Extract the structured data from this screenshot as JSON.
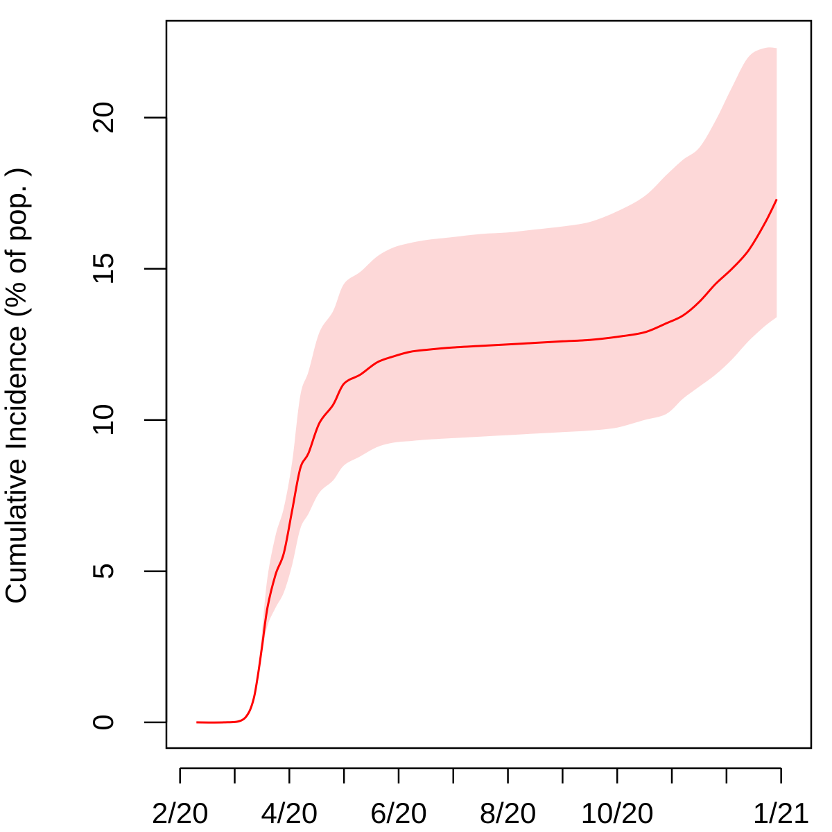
{
  "chart_data": {
    "type": "line",
    "title": "",
    "xlabel": "",
    "ylabel": "Cumulative Incidence (% of pop. )",
    "ylim": [
      -0.85,
      23.2
    ],
    "xlim": [
      -0.25,
      11.55
    ],
    "grid": false,
    "x_tick_positions": [
      0,
      1,
      2,
      3,
      4,
      5,
      6,
      7,
      8,
      9,
      10,
      11
    ],
    "x_tick_labels": [
      {
        "x": 0,
        "label": "2/20"
      },
      {
        "x": 2,
        "label": "4/20"
      },
      {
        "x": 4,
        "label": "6/20"
      },
      {
        "x": 6,
        "label": "8/20"
      },
      {
        "x": 8,
        "label": "10/20"
      },
      {
        "x": 11,
        "label": "1/21"
      }
    ],
    "y_ticks": [
      {
        "value": 0,
        "label": "0"
      },
      {
        "value": 5,
        "label": "5"
      },
      {
        "value": 10,
        "label": "10"
      },
      {
        "value": 15,
        "label": "15"
      },
      {
        "value": 20,
        "label": "20"
      }
    ],
    "series": [
      {
        "name": "Cumulative incidence",
        "color": "#ff0000",
        "x": [
          0.3,
          0.8,
          1.1,
          1.25,
          1.35,
          1.42,
          1.5,
          1.6,
          1.75,
          1.9,
          2.05,
          2.2,
          2.35,
          2.55,
          2.8,
          3.0,
          3.3,
          3.6,
          3.9,
          4.2,
          4.5,
          5.0,
          5.5,
          6.0,
          6.5,
          7.0,
          7.5,
          8.0,
          8.5,
          8.9,
          9.2,
          9.5,
          9.8,
          10.1,
          10.4,
          10.7,
          10.92
        ],
        "y": [
          0,
          0,
          0.05,
          0.3,
          0.8,
          1.5,
          2.5,
          3.8,
          4.9,
          5.6,
          7.0,
          8.4,
          8.9,
          9.9,
          10.5,
          11.2,
          11.5,
          11.9,
          12.1,
          12.25,
          12.32,
          12.4,
          12.45,
          12.5,
          12.55,
          12.6,
          12.65,
          12.75,
          12.9,
          13.2,
          13.45,
          13.9,
          14.5,
          15.0,
          15.6,
          16.5,
          17.3
        ]
      }
    ],
    "confidence_band": {
      "color": "#fdd8d8",
      "x": [
        1.25,
        1.35,
        1.42,
        1.5,
        1.6,
        1.75,
        1.9,
        2.05,
        2.2,
        2.35,
        2.55,
        2.8,
        3.0,
        3.3,
        3.6,
        3.9,
        4.2,
        4.5,
        5.0,
        5.5,
        6.0,
        6.5,
        7.0,
        7.5,
        8.0,
        8.5,
        8.9,
        9.2,
        9.5,
        9.8,
        10.1,
        10.4,
        10.7,
        10.92
      ],
      "lower": [
        0.3,
        0.8,
        1.5,
        2.3,
        3.2,
        3.8,
        4.3,
        5.2,
        6.4,
        6.9,
        7.6,
        8.0,
        8.5,
        8.8,
        9.1,
        9.25,
        9.3,
        9.35,
        9.4,
        9.45,
        9.5,
        9.55,
        9.6,
        9.65,
        9.75,
        10.0,
        10.2,
        10.7,
        11.1,
        11.5,
        12.0,
        12.6,
        13.1,
        13.4
      ],
      "upper": [
        0.3,
        0.8,
        1.6,
        3.0,
        4.8,
        6.2,
        7.1,
        8.6,
        10.8,
        11.6,
        12.9,
        13.6,
        14.5,
        14.9,
        15.4,
        15.7,
        15.85,
        15.95,
        16.05,
        16.15,
        16.2,
        16.3,
        16.4,
        16.55,
        16.9,
        17.4,
        18.1,
        18.6,
        19.0,
        19.9,
        21.0,
        22.0,
        22.3,
        22.3
      ]
    }
  }
}
